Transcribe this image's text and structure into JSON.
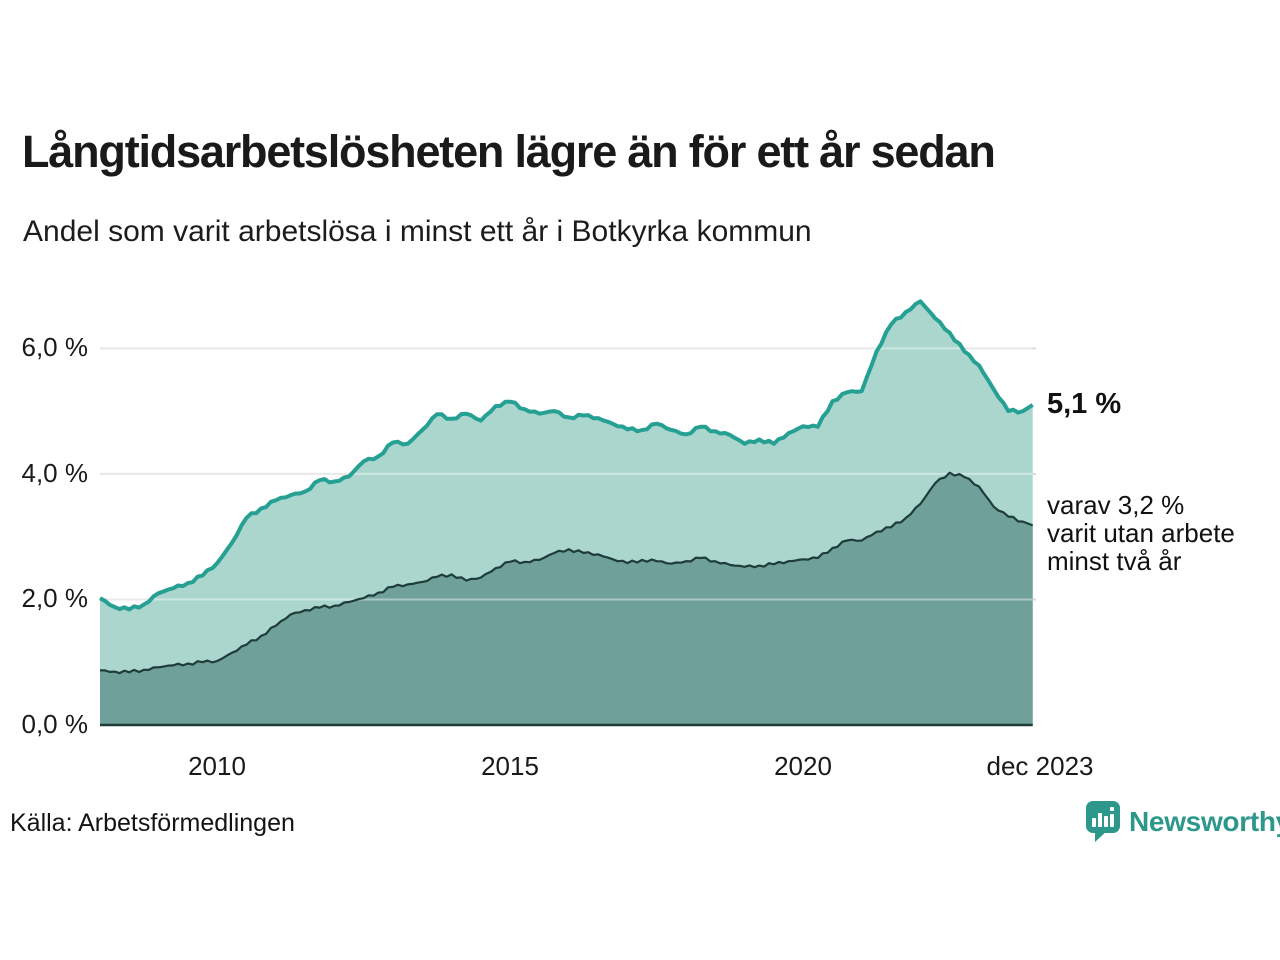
{
  "title": "Långtidsarbetslösheten lägre än för ett år sedan",
  "subtitle": "Andel som varit arbetslösa i minst ett år i Botkyrka kommun",
  "source": "Källa: Arbetsförmedlingen",
  "branding": {
    "name": "Newsworthy",
    "color": "#2e978c",
    "icon": "bar-chart-bubble-icon"
  },
  "annotations": {
    "total_label": "5,1 %",
    "subset_label": [
      "varav 3,2 %",
      "varit utan arbete",
      "minst två år"
    ]
  },
  "axes": {
    "y_ticks": [
      {
        "label": "6,0 %",
        "value": 6.0
      },
      {
        "label": "4,0 %",
        "value": 4.0
      },
      {
        "label": "2,0 %",
        "value": 2.0
      },
      {
        "label": "0,0 %",
        "value": 0.0
      }
    ],
    "x_ticks": [
      {
        "label": "2010",
        "year": 2010.0
      },
      {
        "label": "2015",
        "year": 2015.0
      },
      {
        "label": "2020",
        "year": 2020.0
      },
      {
        "label": "dec 2023",
        "year": 2023.92
      }
    ]
  },
  "colors": {
    "total_line": "#27a094",
    "total_fill": "#abd6ce",
    "subset_line": "#1e3c39",
    "subset_fill": "#6fa09a",
    "gridline": "#d9d9d9",
    "gridline_over_fill": "rgba(255,255,255,0.42)",
    "baseline": "#1e3c39",
    "text": "#1a1a1a"
  },
  "chart_data": {
    "type": "area",
    "title": "Långtidsarbetslösheten lägre än för ett år sedan",
    "subtitle": "Andel som varit arbetslösa i minst ett år i Botkyrka kommun",
    "unit": "%",
    "x_start_year": 2008.0,
    "x_step_years": 0.25,
    "ylim": [
      0,
      7
    ],
    "grid_values": [
      2,
      4,
      6
    ],
    "legend_position": "right-annotations",
    "series": [
      {
        "name": "Andel arbetslösa minst ett år",
        "annotation": "5,1 %",
        "final_year": 2023.917,
        "final_value": 5.1,
        "values": [
          2.02,
          1.88,
          1.84,
          1.92,
          2.1,
          2.18,
          2.26,
          2.38,
          2.58,
          2.9,
          3.3,
          3.45,
          3.58,
          3.66,
          3.72,
          3.9,
          3.88,
          3.96,
          4.2,
          4.28,
          4.5,
          4.48,
          4.7,
          4.95,
          4.88,
          4.96,
          4.85,
          5.08,
          5.15,
          5.03,
          4.96,
          5.0,
          4.9,
          4.93,
          4.89,
          4.8,
          4.71,
          4.7,
          4.8,
          4.7,
          4.63,
          4.75,
          4.68,
          4.62,
          4.48,
          4.55,
          4.48,
          4.65,
          4.76,
          4.75,
          5.16,
          5.3,
          5.32,
          5.95,
          6.38,
          6.58,
          6.75,
          6.48,
          6.25,
          5.95,
          5.73,
          5.35,
          5.0,
          5.0
        ]
      },
      {
        "name": "varav utan arbete minst två år",
        "annotation": "varav 3,2 % varit utan arbete minst två år",
        "final_year": 2023.917,
        "final_value": 3.18,
        "values": [
          0.87,
          0.85,
          0.84,
          0.88,
          0.92,
          0.95,
          0.98,
          1.0,
          1.02,
          1.15,
          1.28,
          1.42,
          1.58,
          1.76,
          1.83,
          1.87,
          1.9,
          1.96,
          2.02,
          2.11,
          2.2,
          2.24,
          2.28,
          2.36,
          2.4,
          2.3,
          2.35,
          2.5,
          2.6,
          2.6,
          2.63,
          2.74,
          2.8,
          2.74,
          2.72,
          2.64,
          2.58,
          2.63,
          2.61,
          2.57,
          2.61,
          2.66,
          2.61,
          2.55,
          2.52,
          2.54,
          2.56,
          2.61,
          2.64,
          2.66,
          2.82,
          2.94,
          2.94,
          3.08,
          3.15,
          3.3,
          3.52,
          3.85,
          4.02,
          3.95,
          3.8,
          3.48,
          3.32,
          3.24
        ]
      }
    ]
  },
  "plot_geometry_note": "y gridlines at 2,4,6 percent; x range Jan 2008 - Dec 2023"
}
